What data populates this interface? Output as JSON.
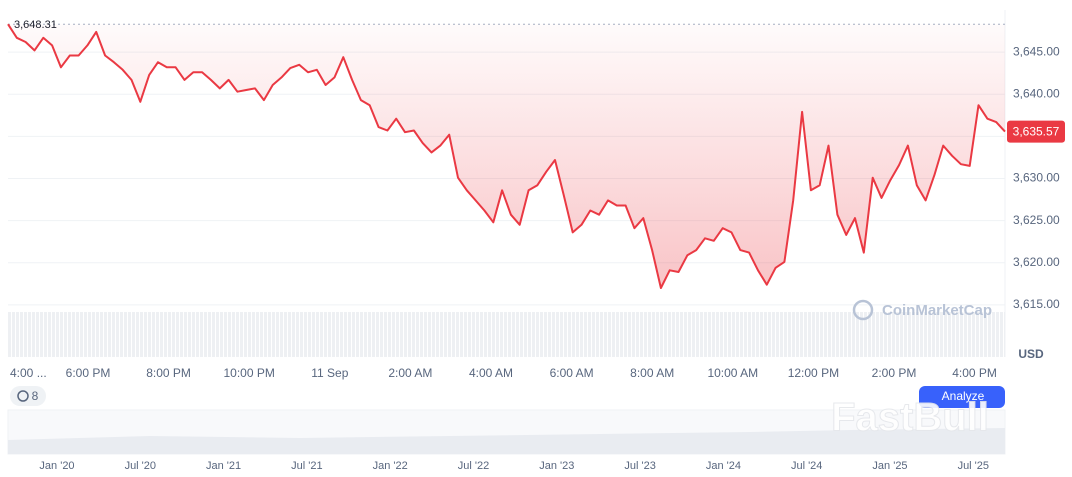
{
  "chart_data": {
    "type": "line",
    "color": "#ea3943",
    "values": [
      3648.31,
      3646.7,
      3646.2,
      3645.2,
      3646.7,
      3645.8,
      3643.2,
      3644.6,
      3644.6,
      3645.8,
      3647.4,
      3644.6,
      3643.8,
      3642.9,
      3641.7,
      3639.1,
      3642.3,
      3643.8,
      3643.2,
      3643.2,
      3641.7,
      3642.6,
      3642.6,
      3641.7,
      3640.7,
      3641.7,
      3640.3,
      3640.5,
      3640.7,
      3639.3,
      3641.1,
      3642.0,
      3643.1,
      3643.5,
      3642.6,
      3642.9,
      3641.1,
      3642.0,
      3644.4,
      3641.7,
      3639.3,
      3638.7,
      3636.1,
      3635.7,
      3637.1,
      3635.5,
      3635.7,
      3634.2,
      3633.1,
      3633.9,
      3635.2,
      3630.1,
      3628.6,
      3627.4,
      3626.2,
      3624.8,
      3628.6,
      3625.7,
      3624.5,
      3628.6,
      3629.2,
      3630.8,
      3632.2,
      3628.0,
      3623.6,
      3624.5,
      3626.2,
      3625.7,
      3627.4,
      3626.8,
      3626.8,
      3624.1,
      3625.3,
      3621.5,
      3617.0,
      3619.1,
      3618.9,
      3620.9,
      3621.5,
      3622.9,
      3622.6,
      3624.1,
      3623.6,
      3621.5,
      3621.2,
      3619.1,
      3617.4,
      3619.4,
      3620.1,
      3627.4,
      3637.9,
      3628.6,
      3629.2,
      3633.9,
      3625.7,
      3623.3,
      3625.3,
      3621.2,
      3630.1,
      3627.7,
      3629.8,
      3631.6,
      3633.9,
      3629.2,
      3627.4,
      3630.4,
      3633.9,
      3632.7,
      3631.7,
      3631.5,
      3638.7,
      3637.1,
      3636.7,
      3635.57
    ],
    "ylim": [
      3610,
      3650
    ],
    "yticks": [
      {
        "value": 3615,
        "label": "3,615.00"
      },
      {
        "value": 3620,
        "label": "3,620.00"
      },
      {
        "value": 3625,
        "label": "3,625.00"
      },
      {
        "value": 3630,
        "label": "3,630.00"
      },
      {
        "value": 3635,
        "label": "3,635.00"
      },
      {
        "value": 3640,
        "label": "3,640.00"
      },
      {
        "value": 3645,
        "label": "3,645.00"
      }
    ],
    "grid": true,
    "max_label": {
      "value": 3648.31,
      "label": "3,648.31"
    },
    "last_label": {
      "value": 3635.57,
      "label": "3,635.57"
    },
    "time_labels": [
      "4:00 ...",
      "6:00 PM",
      "8:00 PM",
      "10:00 PM",
      "11 Sep",
      "2:00 AM",
      "4:00 AM",
      "6:00 AM",
      "8:00 AM",
      "10:00 AM",
      "12:00 PM",
      "2:00 PM",
      "4:00 PM"
    ],
    "currency": "USD",
    "watermark": "CoinMarketCap",
    "badge": "8",
    "button": "Analyze",
    "navigator_labels": [
      "Jan '20",
      "Jul '20",
      "Jan '21",
      "Jul '21",
      "Jan '22",
      "Jul '22",
      "Jan '23",
      "Jul '23",
      "Jan '24",
      "Jul '24",
      "Jan '25",
      "Jul '25"
    ],
    "overlay_watermark": "FastBull"
  }
}
